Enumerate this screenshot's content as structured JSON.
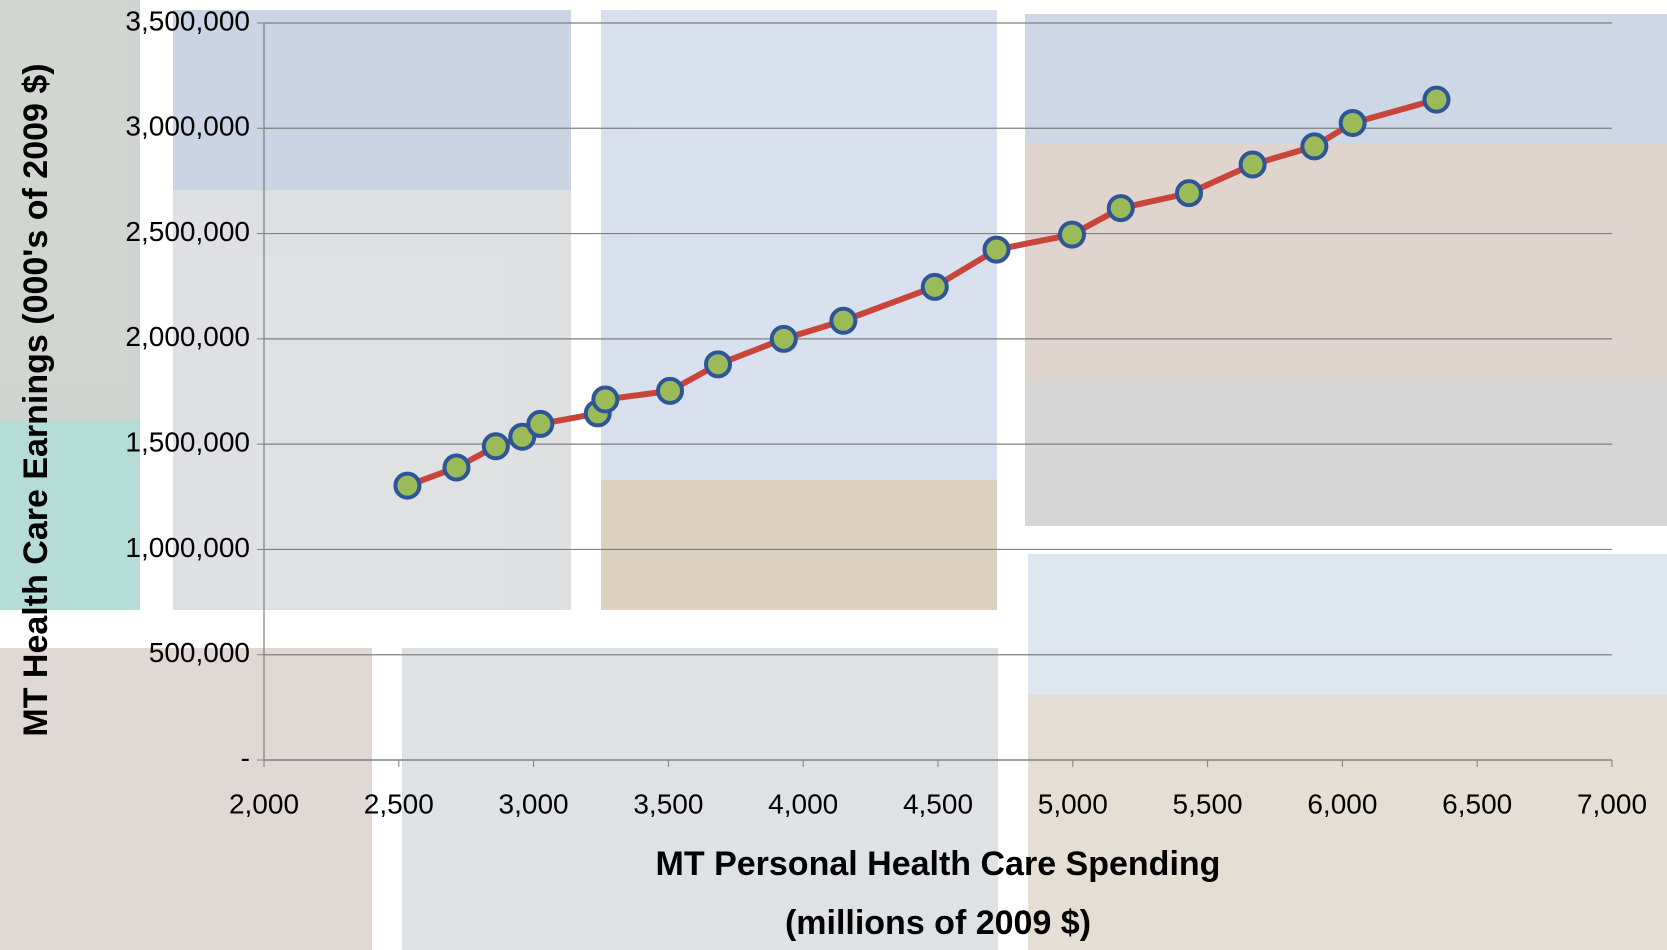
{
  "chart_data": {
    "type": "scatter",
    "xlabel_lines": [
      "MT Personal Health Care Spending",
      "(millions of 2009 $)"
    ],
    "ylabel": "MT Health Care Earnings (000's of 2009 $)",
    "x": [
      2532,
      2714,
      2860,
      2958,
      3025,
      3238,
      3266,
      3506,
      3684,
      3928,
      4149,
      4488,
      4717,
      4997,
      5178,
      5431,
      5667,
      5896,
      6038,
      6349
    ],
    "values": [
      1303000,
      1389000,
      1490000,
      1535000,
      1596000,
      1646000,
      1712000,
      1753000,
      1879000,
      2000000,
      2086000,
      2247000,
      2424000,
      2495000,
      2621000,
      2692000,
      2828000,
      2914000,
      3025000,
      3136000
    ],
    "line_color": "#c9443a",
    "marker_color": "#9bbb59",
    "marker_edge_color": "#2e5597",
    "xlim": [
      2000,
      7000
    ],
    "ylim": [
      0,
      3500000
    ],
    "xticks": [
      {
        "value": 2000,
        "label": "2,000"
      },
      {
        "value": 2500,
        "label": "2,500"
      },
      {
        "value": 3000,
        "label": "3,000"
      },
      {
        "value": 3500,
        "label": "3,500"
      },
      {
        "value": 4000,
        "label": "4,000"
      },
      {
        "value": 4500,
        "label": "4,500"
      },
      {
        "value": 5000,
        "label": "5,000"
      },
      {
        "value": 5500,
        "label": "5,500"
      },
      {
        "value": 6000,
        "label": "6,000"
      },
      {
        "value": 6500,
        "label": "6,500"
      },
      {
        "value": 7000,
        "label": "7,000"
      }
    ],
    "yticks": [
      {
        "value": 0,
        "label": "-"
      },
      {
        "value": 500000,
        "label": "500,000"
      },
      {
        "value": 1000000,
        "label": "1,000,000"
      },
      {
        "value": 1500000,
        "label": "1,500,000"
      },
      {
        "value": 2000000,
        "label": "2,000,000"
      },
      {
        "value": 2500000,
        "label": "2,500,000"
      },
      {
        "value": 3000000,
        "label": "3,000,000"
      },
      {
        "value": 3500000,
        "label": "3,500,000"
      }
    ],
    "grid": true
  }
}
